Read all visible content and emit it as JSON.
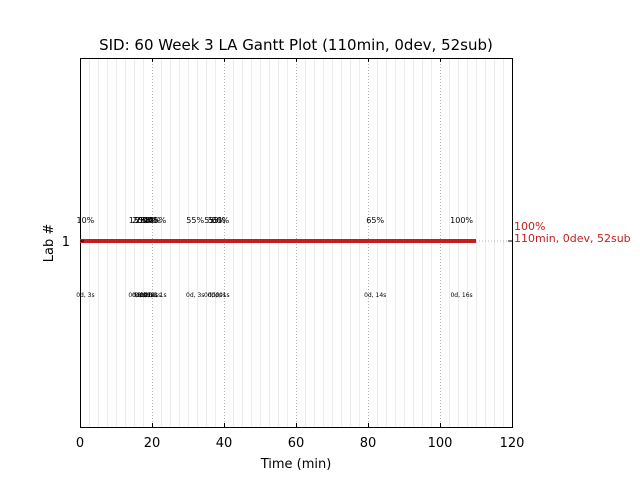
{
  "chart_data": {
    "type": "gantt",
    "title": "SID: 60 Week 3 LA Gantt Plot (110min, 0dev, 52sub)",
    "xlabel": "Time (min)",
    "ylabel": "Lab #",
    "xlim": [
      0,
      120
    ],
    "xticks": [
      0,
      20,
      40,
      60,
      80,
      100,
      120
    ],
    "minor_grid_step": 2.5,
    "major_grid_step": 20,
    "grid": true,
    "rows": [
      {
        "label": "1",
        "start": 0,
        "end": 110,
        "color": "#c41e1e",
        "end_label_pct": "100%",
        "end_label_summary": "110min, 0dev, 52sub"
      }
    ],
    "milestones": [
      {
        "x": 1.5,
        "pct": "10%",
        "detail": "0d, 3s"
      },
      {
        "x": 16,
        "pct": "15%",
        "detail": "0d, 0s"
      },
      {
        "x": 17,
        "pct": "20%",
        "detail": "0d, 0s"
      },
      {
        "x": 17.8,
        "pct": "25%",
        "detail": "0d, 0s"
      },
      {
        "x": 18.5,
        "pct": "30%",
        "detail": "0d, 0s"
      },
      {
        "x": 19.2,
        "pct": "35%",
        "detail": "0d, 1s"
      },
      {
        "x": 20,
        "pct": "40%",
        "detail": "0d, 1s"
      },
      {
        "x": 21.5,
        "pct": "45%",
        "detail": "0d, 1s"
      },
      {
        "x": 32,
        "pct": "55%",
        "detail": "0d, 3s"
      },
      {
        "x": 37,
        "pct": "55%",
        "detail": "0d, 0s"
      },
      {
        "x": 38,
        "pct": "55%",
        "detail": "0d, 0s"
      },
      {
        "x": 39,
        "pct": "60%",
        "detail": "0d, 1s"
      },
      {
        "x": 82,
        "pct": "65%",
        "detail": "0d, 14s"
      },
      {
        "x": 106,
        "pct": "100%",
        "detail": "0d, 16s"
      }
    ]
  }
}
